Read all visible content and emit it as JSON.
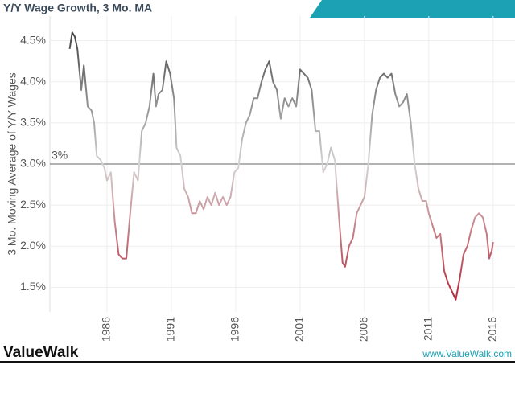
{
  "chart_data": {
    "type": "line",
    "title": "Y/Y Wage Growth, 3 Mo. MA",
    "y_axis_label": "3 Mo. Moving Average of Y/Y Wages",
    "brand": "ValueWalk",
    "url": "www.ValueWalk.com",
    "reference_line": {
      "value": 3,
      "label": "3%"
    },
    "x": [
      1983.1,
      1983.3,
      1983.5,
      1983.7,
      1984.0,
      1984.2,
      1984.5,
      1984.8,
      1985.0,
      1985.2,
      1985.5,
      1985.8,
      1986.0,
      1986.3,
      1986.6,
      1986.9,
      1987.2,
      1987.5,
      1987.8,
      1988.1,
      1988.4,
      1988.7,
      1989.0,
      1989.3,
      1989.6,
      1989.8,
      1990.0,
      1990.3,
      1990.6,
      1990.9,
      1991.2,
      1991.4,
      1991.7,
      1992.0,
      1992.3,
      1992.6,
      1992.9,
      1993.2,
      1993.5,
      1993.8,
      1994.1,
      1994.4,
      1994.7,
      1995.0,
      1995.3,
      1995.6,
      1995.9,
      1996.2,
      1996.5,
      1996.8,
      1997.1,
      1997.4,
      1997.7,
      1998.0,
      1998.3,
      1998.6,
      1998.9,
      1999.2,
      1999.5,
      1999.8,
      2000.1,
      2000.4,
      2000.7,
      2001.0,
      2001.3,
      2001.6,
      2001.9,
      2002.2,
      2002.5,
      2002.8,
      2003.1,
      2003.4,
      2003.7,
      2004.0,
      2004.3,
      2004.5,
      2004.8,
      2005.1,
      2005.4,
      2005.7,
      2006.0,
      2006.3,
      2006.6,
      2006.9,
      2007.2,
      2007.5,
      2007.8,
      2008.1,
      2008.4,
      2008.7,
      2009.0,
      2009.3,
      2009.6,
      2009.9,
      2010.2,
      2010.5,
      2010.8,
      2011.0,
      2011.3,
      2011.6,
      2011.9,
      2012.2,
      2012.5,
      2012.8,
      2013.1,
      2013.4,
      2013.7,
      2014.0,
      2014.3,
      2014.6,
      2014.9,
      2015.2,
      2015.5,
      2015.7,
      2015.9,
      2016.0
    ],
    "series": [
      {
        "name": "3 Mo. MA",
        "values": [
          4.4,
          4.6,
          4.55,
          4.4,
          3.9,
          4.2,
          3.7,
          3.65,
          3.5,
          3.1,
          3.05,
          2.95,
          2.8,
          2.9,
          2.3,
          1.9,
          1.85,
          1.85,
          2.4,
          2.9,
          2.8,
          3.4,
          3.5,
          3.7,
          4.1,
          3.7,
          3.85,
          3.9,
          4.25,
          4.1,
          3.8,
          3.2,
          3.1,
          2.7,
          2.6,
          2.4,
          2.4,
          2.55,
          2.45,
          2.6,
          2.5,
          2.65,
          2.5,
          2.6,
          2.5,
          2.6,
          2.9,
          2.95,
          3.3,
          3.5,
          3.6,
          3.8,
          3.8,
          4.0,
          4.15,
          4.25,
          4.0,
          3.9,
          3.55,
          3.8,
          3.7,
          3.8,
          3.7,
          4.15,
          4.1,
          4.05,
          3.9,
          3.4,
          3.4,
          2.9,
          3.0,
          3.2,
          3.05,
          2.4,
          1.8,
          1.75,
          2.0,
          2.1,
          2.4,
          2.5,
          2.6,
          3.0,
          3.6,
          3.9,
          4.05,
          4.1,
          4.05,
          4.1,
          3.85,
          3.7,
          3.75,
          3.85,
          3.5,
          3.0,
          2.7,
          2.55,
          2.55,
          2.4,
          2.25,
          2.1,
          2.15,
          1.7,
          1.55,
          1.45,
          1.35,
          1.6,
          1.9,
          2.0,
          2.2,
          2.35,
          2.4,
          2.35,
          2.15,
          1.85,
          1.95,
          2.05
        ]
      }
    ],
    "colors": {
      "high": "#333333",
      "mid": "#d4d4d4",
      "low": "#b2182b"
    },
    "xlim": [
      1981.56,
      2017.7
    ],
    "xticks": [
      1986,
      1991,
      1996,
      2001,
      2006,
      2011,
      2016
    ],
    "ylim": [
      1.2,
      4.8
    ],
    "yticks": [
      {
        "value": 1.5,
        "label": "1.5%"
      },
      {
        "value": 2.0,
        "label": "2.0%"
      },
      {
        "value": 2.5,
        "label": "2.5%"
      },
      {
        "value": 3.0,
        "label": "3.0%"
      },
      {
        "value": 3.5,
        "label": "3.5%"
      },
      {
        "value": 4.0,
        "label": "4.0%"
      },
      {
        "value": 4.5,
        "label": "4.5%"
      }
    ],
    "grid": true
  }
}
